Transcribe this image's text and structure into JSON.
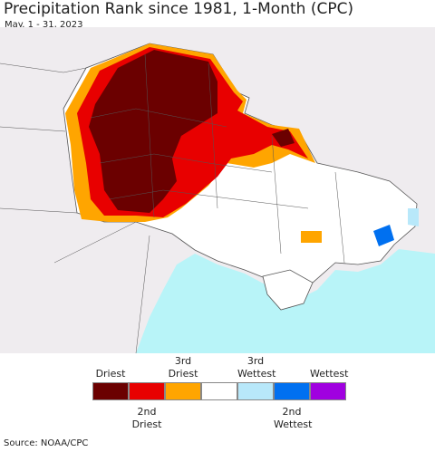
{
  "header": {
    "title": "Precipitation Rank since 1981, 1-Month (CPC)",
    "subtitle": "May. 1 - 31, 2023"
  },
  "legend": {
    "colors": [
      "#6b0000",
      "#e80000",
      "#ffa500",
      "#ffffff",
      "#b8e8fa",
      "#0070f0",
      "#a000e0"
    ],
    "labels": [
      "Driest",
      "2nd Driest",
      "3rd Driest",
      null,
      "3rd Wettest",
      "2nd Wettest",
      "Wettest"
    ]
  },
  "footer": {
    "source": "Source: NOAA/CPC"
  }
}
